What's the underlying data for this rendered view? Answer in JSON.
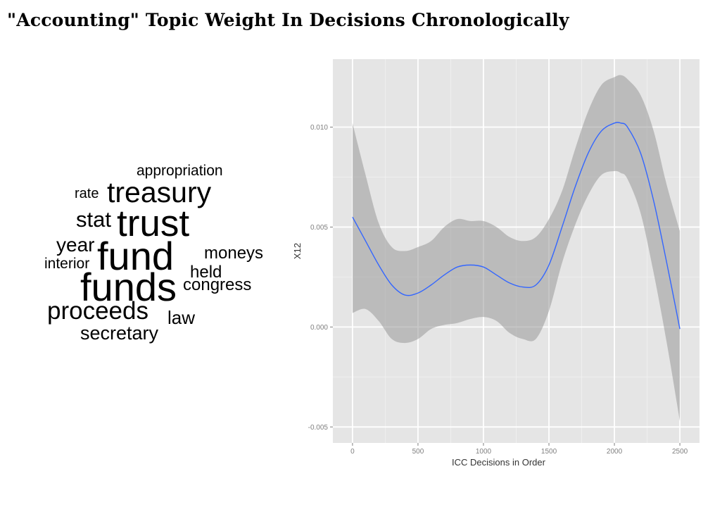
{
  "page": {
    "title": "\"Accounting\" Topic Weight In Decisions Chronologically"
  },
  "word_cloud": {
    "words": [
      {
        "text": "appropriation"
      },
      {
        "text": "rate"
      },
      {
        "text": "treasury"
      },
      {
        "text": "stat"
      },
      {
        "text": "trust"
      },
      {
        "text": "year"
      },
      {
        "text": "fund"
      },
      {
        "text": "moneys"
      },
      {
        "text": "interior"
      },
      {
        "text": "held"
      },
      {
        "text": "funds"
      },
      {
        "text": "congress"
      },
      {
        "text": "proceeds"
      },
      {
        "text": "law"
      },
      {
        "text": "secretary"
      }
    ]
  },
  "chart_data": {
    "type": "line",
    "title": "",
    "xlabel": "ICC Decisions in Order",
    "ylabel": "X12",
    "xlim": [
      -150,
      2650
    ],
    "ylim": [
      -0.0058,
      0.0134
    ],
    "x_ticks": [
      0,
      500,
      1000,
      1500,
      2000,
      2500
    ],
    "x_tick_labels": [
      "0",
      "500",
      "1000",
      "1500",
      "2000",
      "2500"
    ],
    "y_ticks": [
      -0.005,
      0.0,
      0.005,
      0.01
    ],
    "y_tick_labels": [
      "-0.005",
      "0.000",
      "0.005",
      "0.010"
    ],
    "grid": true,
    "series": [
      {
        "color": "#3366ff",
        "band_color": "#999999",
        "x": [
          0,
          100,
          200,
          300,
          400,
          500,
          600,
          700,
          800,
          900,
          1000,
          1100,
          1200,
          1300,
          1400,
          1500,
          1600,
          1700,
          1800,
          1900,
          2000,
          2050,
          2100,
          2200,
          2300,
          2400,
          2500
        ],
        "y": [
          0.0055,
          0.0043,
          0.0031,
          0.0021,
          0.0016,
          0.0017,
          0.0021,
          0.0026,
          0.003,
          0.0031,
          0.003,
          0.0026,
          0.0022,
          0.002,
          0.0021,
          0.0031,
          0.005,
          0.007,
          0.0087,
          0.0098,
          0.0102,
          0.0102,
          0.01,
          0.0087,
          0.0063,
          0.0032,
          -0.0001
        ],
        "lower": [
          0.0007,
          0.0009,
          0.0003,
          -0.0006,
          -0.0008,
          -0.0006,
          -0.0001,
          0.0001,
          0.0002,
          0.0004,
          0.0005,
          0.0003,
          -0.0003,
          -0.0006,
          -0.0006,
          0.0008,
          0.0032,
          0.0051,
          0.0066,
          0.0076,
          0.0078,
          0.0077,
          0.0074,
          0.0057,
          0.0027,
          -0.0008,
          -0.0047
        ],
        "upper": [
          0.0102,
          0.0076,
          0.0052,
          0.004,
          0.0038,
          0.004,
          0.0043,
          0.005,
          0.0054,
          0.0053,
          0.0053,
          0.005,
          0.0045,
          0.0043,
          0.0045,
          0.0054,
          0.0068,
          0.0089,
          0.0108,
          0.0121,
          0.0125,
          0.0126,
          0.0124,
          0.0116,
          0.0098,
          0.0071,
          0.0048
        ]
      }
    ]
  }
}
